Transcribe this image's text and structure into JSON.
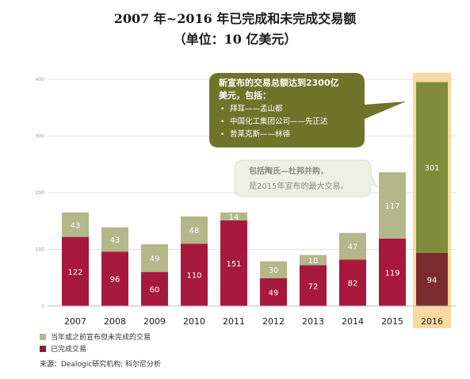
{
  "title_line1": "2007 年~2016 年已完成和未完成交易额",
  "title_line2": "（单位：10 亿美元）",
  "chart_data": {
    "type": "bar",
    "stacked": true,
    "categories": [
      "2007",
      "2008",
      "2009",
      "2010",
      "2011",
      "2012",
      "2013",
      "2014",
      "2015",
      "2016"
    ],
    "series": [
      {
        "name": "已完成交易",
        "color": "#a6193c",
        "highlight_color": "#7c2c2e",
        "values": [
          122,
          96,
          60,
          110,
          151,
          49,
          72,
          82,
          119,
          94
        ]
      },
      {
        "name": "当年或之前宣布但未完成的交易",
        "color": "#b3b78a",
        "highlight_color": "#7f8c3a",
        "values": [
          43,
          43,
          49,
          48,
          14,
          30,
          18,
          47,
          117,
          301
        ]
      }
    ],
    "yticks": [
      0,
      100,
      200,
      300,
      400
    ],
    "ylim": [
      0,
      400
    ],
    "highlight_category": "2016",
    "grid": true,
    "legend_position": "bottom-left"
  },
  "callout1": {
    "line1": "新宣布的交易总额达到2300亿",
    "line2": "美元，包括：",
    "bullets": [
      "拜耳——孟山都",
      "中国化工集团公司——先正达",
      "普莱克斯——林德"
    ]
  },
  "callout2": {
    "line1": "包括陶氏—杜邦并购，",
    "line2": "是2015年宣布的最大交易。"
  },
  "source": "来源：Dealogic研究机构; 科尔尼分析",
  "colors": {
    "completed": "#a6193c",
    "pending": "#b3b78a",
    "completed_2016": "#7c2c2e",
    "pending_2016": "#7f8c3a",
    "highlight_band": "#f9d9a0",
    "callout": "#6e752a"
  }
}
